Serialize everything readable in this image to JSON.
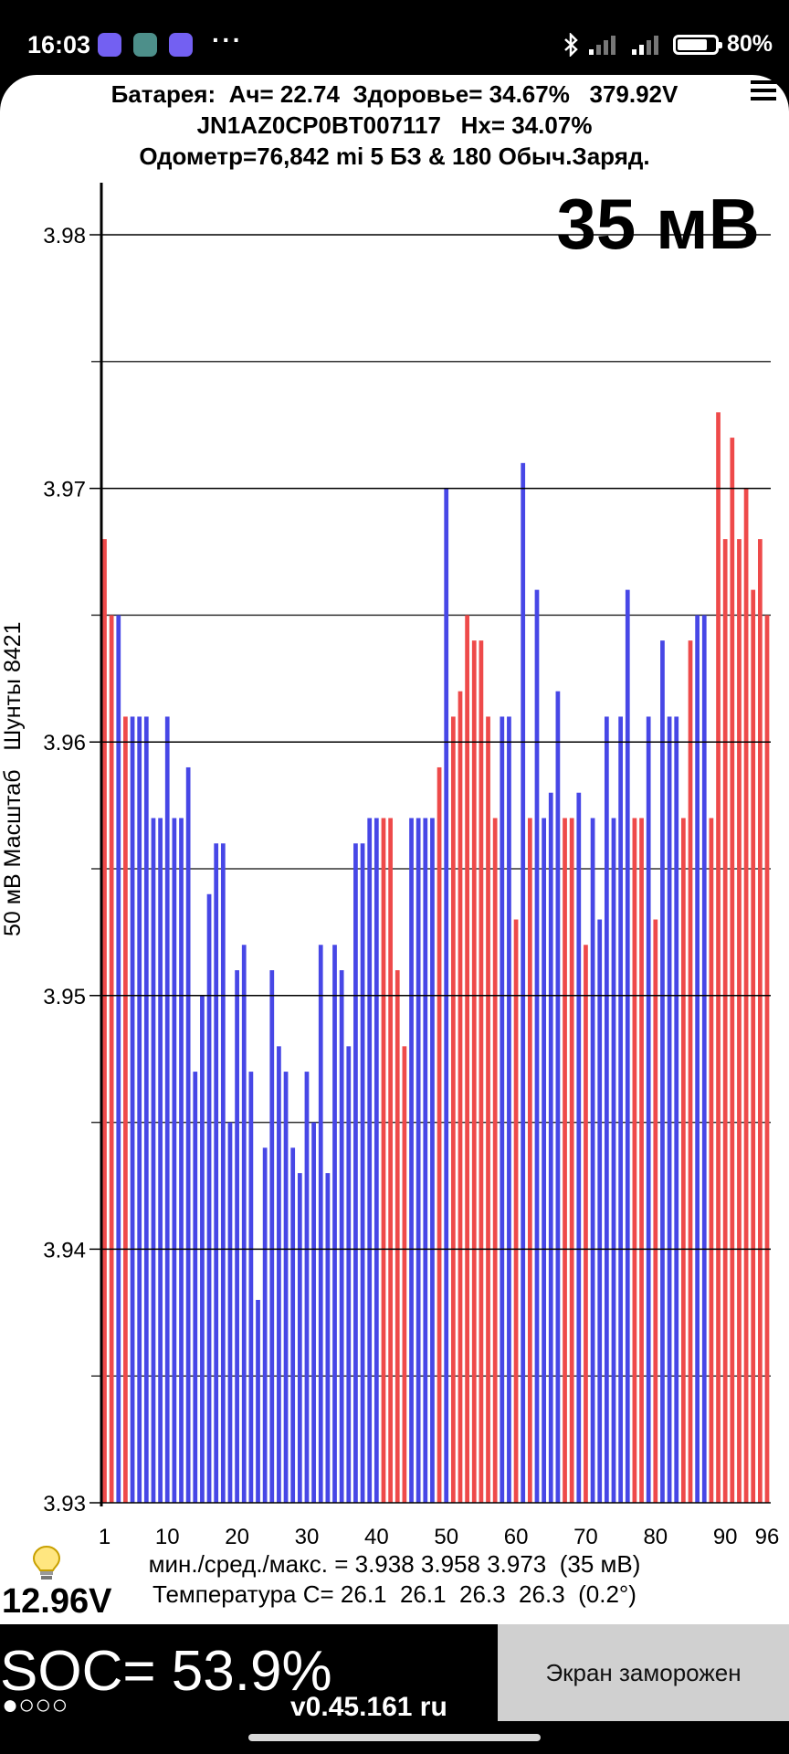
{
  "status_bar": {
    "time": "16:03",
    "app_icons": [
      "viber-icon",
      "gallery-icon",
      "viber-icon"
    ],
    "more": "···",
    "battery_percent": "80%",
    "battery_level": 0.8
  },
  "header": {
    "line1": "Батарея:  Ач= 22.74  Здоровье= 34.67%   379.92V",
    "line2": "JN1AZ0CP0BT007117   Hx= 34.07%",
    "line3": "Одометр=76,842 mi 5 БЗ & 180 Обыч.Заряд."
  },
  "range_label": "35 мВ",
  "y_axis_label": "50 мВ Масштаб   Шунты 8421",
  "chart_data": {
    "type": "bar",
    "ylim": [
      3.93,
      3.98
    ],
    "y_ticks": [
      3.93,
      3.94,
      3.95,
      3.96,
      3.97,
      3.98
    ],
    "y_tick_labels": [
      "3.93",
      "3.94",
      "3.95",
      "3.96",
      "3.97",
      "3.98"
    ],
    "x_tick_positions": [
      1,
      10,
      20,
      30,
      40,
      50,
      60,
      70,
      80,
      90,
      96
    ],
    "x_tick_labels": [
      "1",
      "10",
      "20",
      "30",
      "40",
      "50",
      "60",
      "70",
      "80",
      "90",
      "96"
    ],
    "grid": true,
    "colors": {
      "shunted": "#ee4a4a",
      "normal": "#4747e6"
    },
    "values": [
      3.968,
      3.965,
      3.965,
      3.961,
      3.961,
      3.961,
      3.961,
      3.957,
      3.957,
      3.961,
      3.957,
      3.957,
      3.959,
      3.947,
      3.95,
      3.954,
      3.956,
      3.956,
      3.945,
      3.951,
      3.952,
      3.947,
      3.938,
      3.944,
      3.951,
      3.948,
      3.947,
      3.944,
      3.943,
      3.947,
      3.945,
      3.952,
      3.943,
      3.952,
      3.951,
      3.948,
      3.956,
      3.956,
      3.957,
      3.957,
      3.957,
      3.957,
      3.951,
      3.948,
      3.957,
      3.957,
      3.957,
      3.957,
      3.959,
      3.97,
      3.961,
      3.962,
      3.965,
      3.964,
      3.964,
      3.961,
      3.957,
      3.961,
      3.961,
      3.953,
      3.971,
      3.957,
      3.966,
      3.957,
      3.958,
      3.962,
      3.957,
      3.957,
      3.958,
      3.952,
      3.957,
      3.953,
      3.961,
      3.957,
      3.961,
      3.966,
      3.957,
      3.957,
      3.961,
      3.953,
      3.964,
      3.961,
      3.961,
      3.957,
      3.964,
      3.965,
      3.965,
      3.957,
      3.973,
      3.968,
      3.972,
      3.968,
      3.97,
      3.966,
      3.968,
      3.965
    ],
    "shunted": [
      1,
      1,
      0,
      1,
      0,
      0,
      0,
      0,
      0,
      0,
      0,
      0,
      0,
      0,
      0,
      0,
      0,
      0,
      0,
      0,
      0,
      0,
      0,
      0,
      0,
      0,
      0,
      0,
      0,
      0,
      0,
      0,
      0,
      0,
      0,
      0,
      0,
      0,
      0,
      0,
      1,
      1,
      1,
      1,
      0,
      0,
      0,
      0,
      1,
      0,
      1,
      1,
      1,
      1,
      1,
      1,
      1,
      0,
      0,
      1,
      0,
      1,
      0,
      0,
      0,
      0,
      1,
      1,
      0,
      1,
      0,
      0,
      0,
      0,
      0,
      0,
      1,
      1,
      0,
      1,
      0,
      0,
      0,
      1,
      1,
      0,
      0,
      1,
      1,
      1,
      1,
      1,
      1,
      1,
      1,
      1
    ]
  },
  "stats": {
    "minmax": "мин./сред./макс. = 3.938 3.958 3.973  (35 мВ)",
    "temperature": "Температура С= 26.1  26.1  26.3  26.3  (0.2°)"
  },
  "aux_voltage": "12.96V",
  "soc": "SOC= 53.9%",
  "status_dots": "●○○○",
  "version": "v0.45.161 ru",
  "freeze_button": "Экран заморожен"
}
